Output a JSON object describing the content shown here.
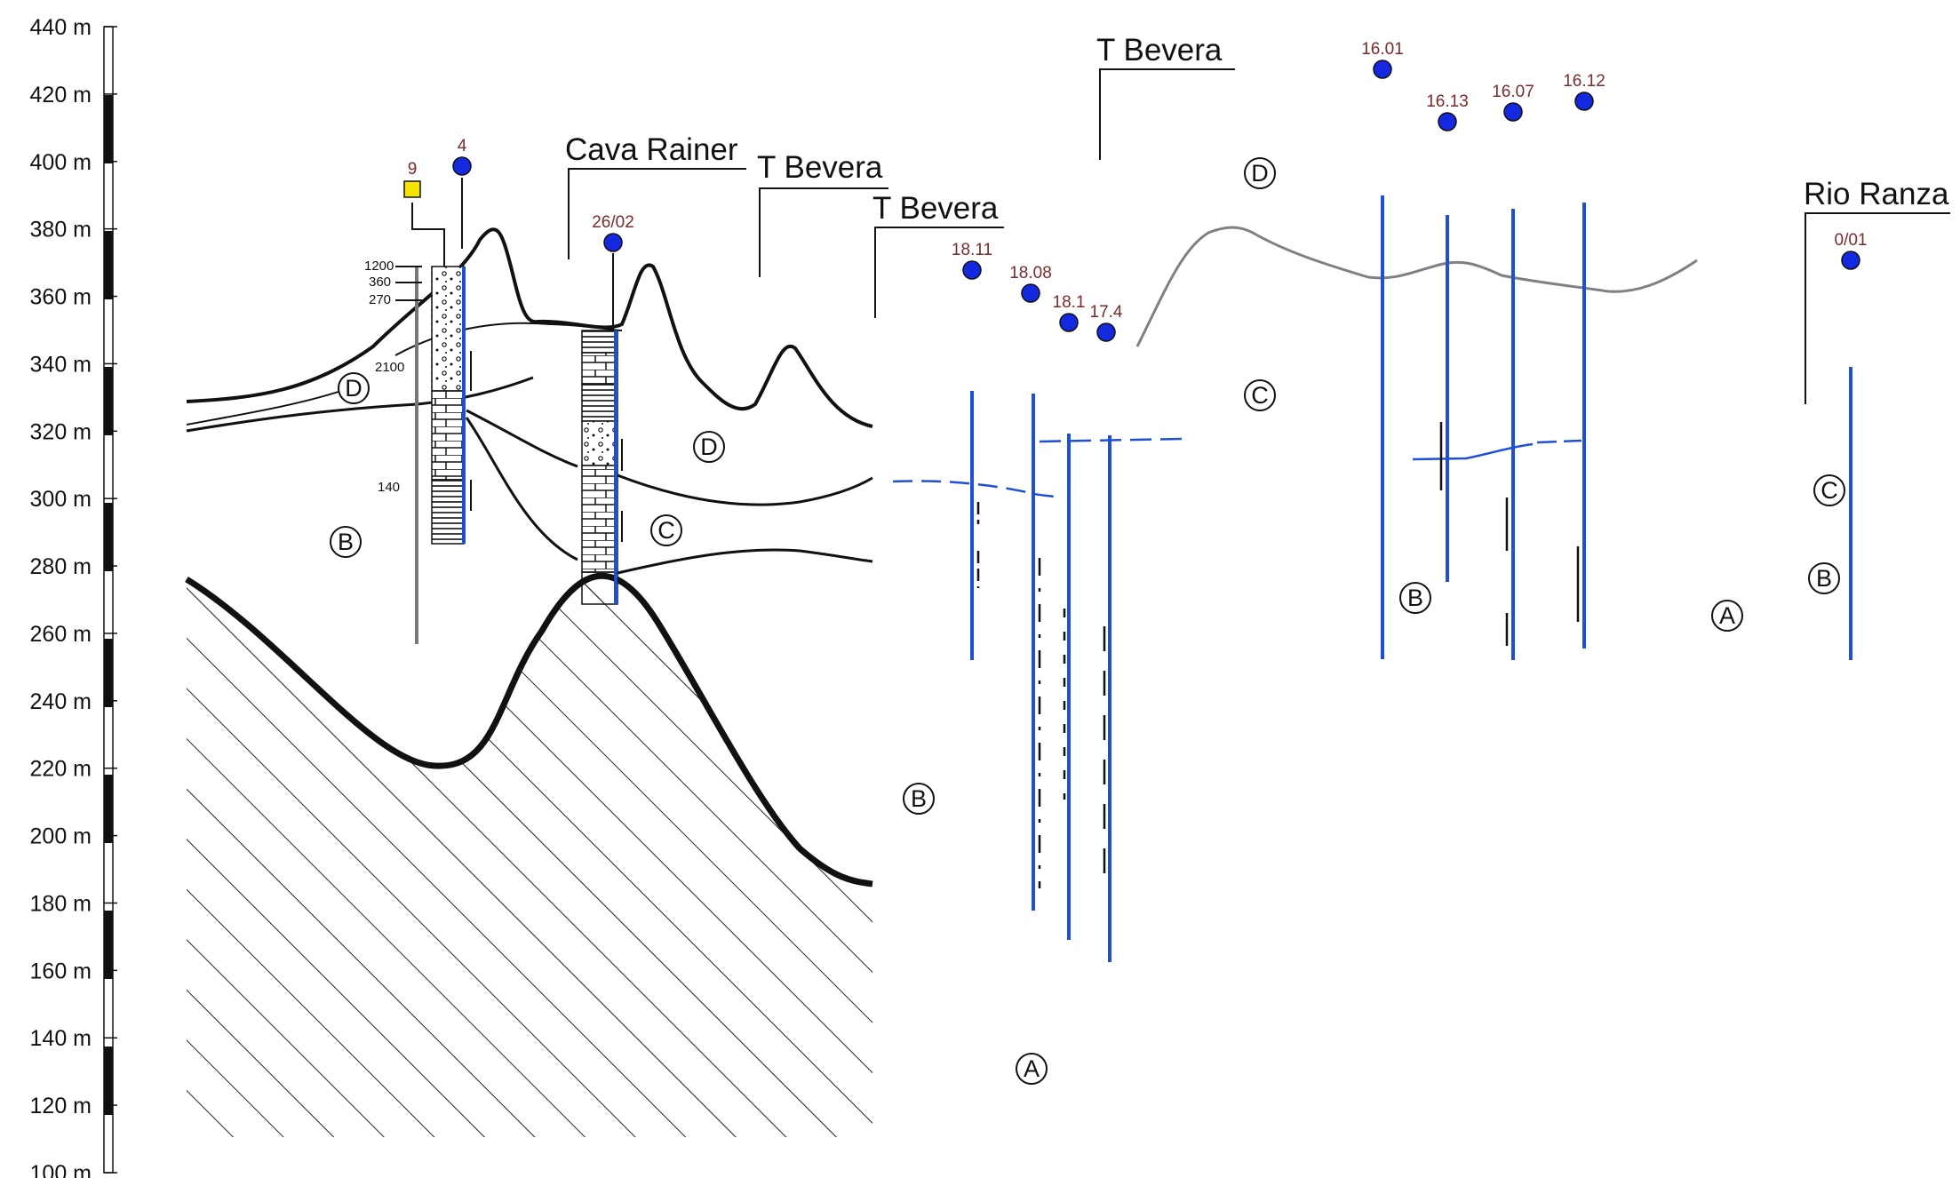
{
  "elevation_scale": {
    "unit": "m",
    "ticks": [
      "440 m",
      "420 m",
      "400 m",
      "380 m",
      "360 m",
      "340 m",
      "320 m",
      "300 m",
      "280 m",
      "260 m",
      "240 m",
      "220 m",
      "200 m",
      "180 m",
      "160 m",
      "140 m",
      "120 m",
      "100 m"
    ],
    "tick_values": [
      440,
      420,
      400,
      380,
      360,
      340,
      320,
      300,
      280,
      260,
      240,
      220,
      200,
      180,
      160,
      140,
      120,
      100
    ]
  },
  "site_labels": [
    "Cava Rainer",
    "T Bevera",
    "T Bevera",
    "T Bevera",
    "Rio Ranza"
  ],
  "wells": [
    {
      "id": "9",
      "shape": "square",
      "color": "#f5e400"
    },
    {
      "id": "4",
      "shape": "circle",
      "color": "#1428e0"
    },
    {
      "id": "26/02",
      "shape": "circle",
      "color": "#1428e0"
    },
    {
      "id": "18.11",
      "shape": "circle",
      "color": "#1428e0"
    },
    {
      "id": "18.08",
      "shape": "circle",
      "color": "#1428e0"
    },
    {
      "id": "18.1",
      "shape": "circle",
      "color": "#1428e0"
    },
    {
      "id": "17.4",
      "shape": "circle",
      "color": "#1428e0"
    },
    {
      "id": "16.01",
      "shape": "circle",
      "color": "#1428e0"
    },
    {
      "id": "16.13",
      "shape": "circle",
      "color": "#1428e0"
    },
    {
      "id": "16.07",
      "shape": "circle",
      "color": "#1428e0"
    },
    {
      "id": "16.12",
      "shape": "circle",
      "color": "#1428e0"
    },
    {
      "id": "0/01",
      "shape": "circle",
      "color": "#1428e0"
    }
  ],
  "zone_letters": [
    "D",
    "B",
    "D",
    "C",
    "B",
    "A",
    "D",
    "C",
    "B",
    "A",
    "C",
    "B"
  ],
  "log_numbers": [
    "1200",
    "360",
    "270",
    "2100",
    "140"
  ],
  "colors": {
    "well_line": "#1f4fd6",
    "surface_line": "#808080",
    "ink": "#111111"
  }
}
